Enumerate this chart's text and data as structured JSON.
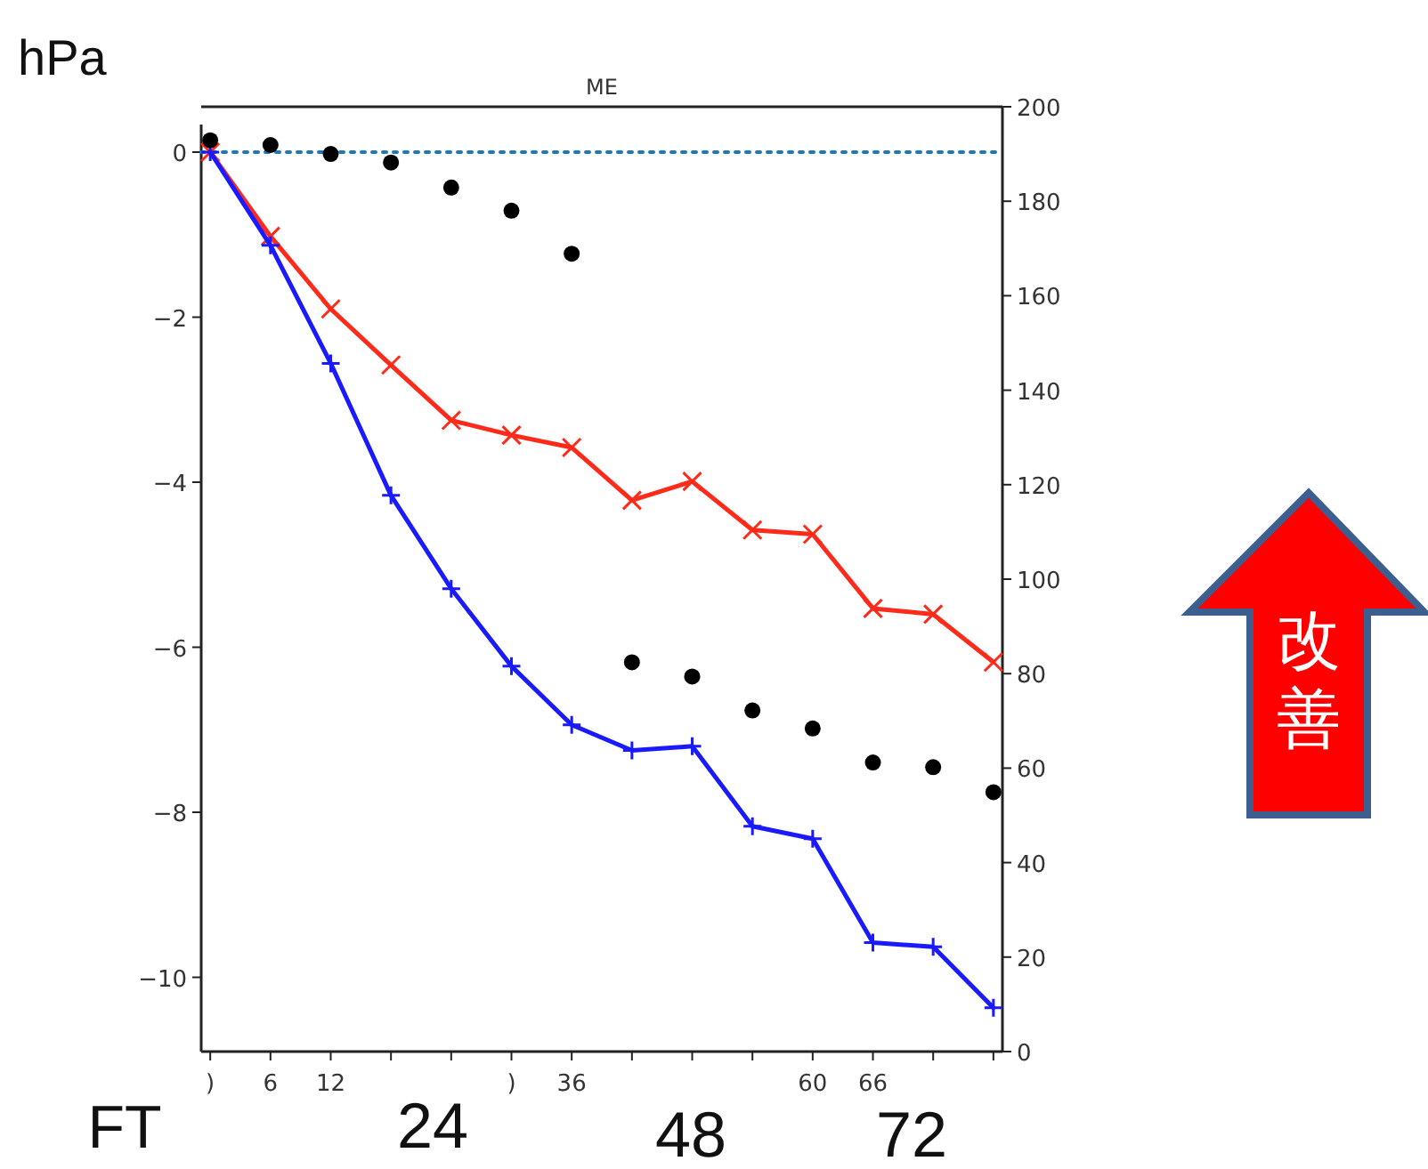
{
  "chart_data": {
    "type": "line",
    "title": "ME",
    "ylabel": "hPa",
    "x": [
      0,
      6,
      12,
      18,
      24,
      30,
      36,
      42,
      48,
      54,
      60,
      66,
      72,
      78
    ],
    "xlim": [
      -0.9,
      78.9
    ],
    "xticks": [
      {
        "value": 0,
        "label": ")"
      },
      6,
      12,
      {
        "value": 18,
        "label": null
      },
      {
        "value": 24,
        "label": null
      },
      {
        "value": 30,
        "label": ")"
      },
      36,
      {
        "value": 42,
        "label": null
      },
      {
        "value": 48,
        "label": null
      },
      {
        "value": 54,
        "label": null
      },
      60,
      66,
      {
        "value": 72,
        "label": null
      },
      {
        "value": 78,
        "label": null
      }
    ],
    "ylim": [
      -10.9,
      0.55
    ],
    "yticks": [
      -10,
      -8,
      -6,
      -4,
      -2,
      0
    ],
    "y2lim": [
      0,
      200
    ],
    "y2ticks": [
      0,
      20,
      40,
      60,
      80,
      100,
      120,
      140,
      160,
      180,
      200
    ],
    "series": [
      {
        "type": "line",
        "color": "#ff2a1a",
        "marker": "cross",
        "values": [
          0.0,
          -1.02,
          -1.9,
          -2.58,
          -3.25,
          -3.43,
          -3.58,
          -4.22,
          -3.99,
          -4.58,
          -4.63,
          -5.53,
          -5.6,
          -6.18
        ]
      },
      {
        "type": "line",
        "color": "#1a1aff",
        "marker": "plus",
        "values": [
          0.0,
          -1.13,
          -2.56,
          -4.16,
          -5.29,
          -6.23,
          -6.94,
          -7.25,
          -7.2,
          -8.17,
          -8.32,
          -9.58,
          -9.63,
          -10.37
        ]
      },
      {
        "type": "scatter",
        "axis": "y2",
        "color": "#000000",
        "marker": "circle",
        "values": [
          192.9,
          191.9,
          190,
          188.2,
          182.9,
          178,
          168.9,
          82.4,
          79.4,
          72.2,
          68.4,
          61.2,
          60.2,
          54.9
        ]
      }
    ],
    "ref_lines": [
      {
        "axis": "y",
        "value": 0,
        "color": "#1f77b4",
        "line_style": "dotted"
      }
    ],
    "annotations": [
      "FT",
      "24",
      "48",
      "72",
      "改善"
    ]
  }
}
